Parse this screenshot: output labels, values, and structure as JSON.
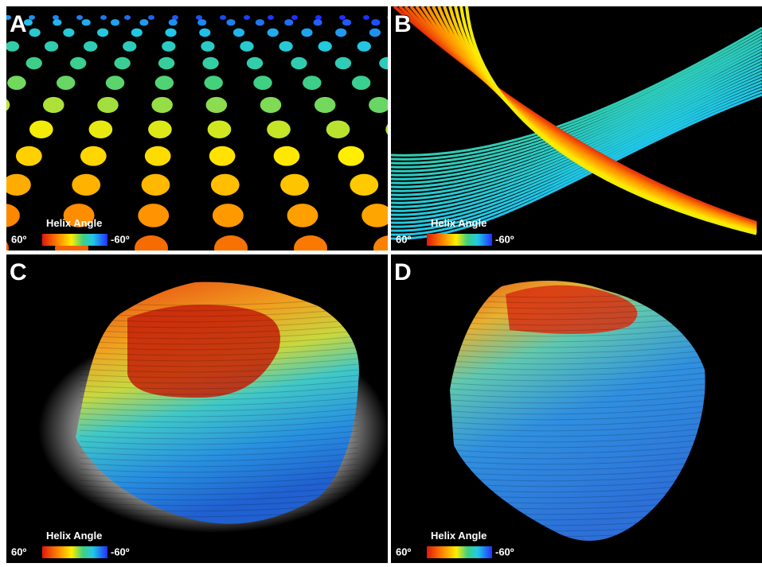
{
  "panels": [
    {
      "label": "A",
      "legend": {
        "title": "Helix Angle",
        "min_label": "60º",
        "max_label": "-60º"
      }
    },
    {
      "label": "B",
      "legend": {
        "title": "Helix Angle",
        "min_label": "60º",
        "max_label": "-60º"
      }
    },
    {
      "label": "C",
      "legend": {
        "title": "Helix Angle",
        "min_label": "60º",
        "max_label": "-60º"
      }
    },
    {
      "label": "D",
      "legend": {
        "title": "Helix Angle",
        "min_label": "60º",
        "max_label": "-60º"
      }
    }
  ]
}
